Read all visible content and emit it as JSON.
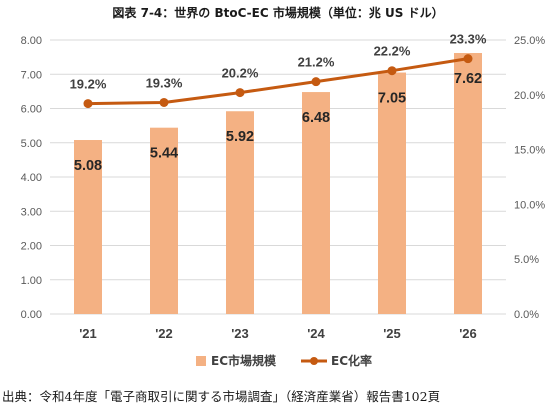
{
  "title": "図表 7-4：世界の BtoC-EC 市場規模（単位：兆 US ドル）",
  "source": "出典：令和4年度「電子商取引に関する市場調査」（経済産業省）報告書102頁",
  "colors": {
    "bar": "#F4B183",
    "line": "#C55A11",
    "grid": "#D9D9D9",
    "axis_text": "#595959"
  },
  "chart_data": {
    "type": "bar",
    "categories": [
      "'21",
      "'22",
      "'23",
      "'24",
      "'25",
      "'26"
    ],
    "series": [
      {
        "name": "EC市場規模",
        "type": "bar",
        "axis": "left",
        "values": [
          5.08,
          5.44,
          5.92,
          6.48,
          7.05,
          7.62
        ],
        "labels": [
          "5.08",
          "5.44",
          "5.92",
          "6.48",
          "7.05",
          "7.62"
        ]
      },
      {
        "name": "EC化率",
        "type": "line",
        "axis": "right",
        "values": [
          19.2,
          19.3,
          20.2,
          21.2,
          22.2,
          23.3
        ],
        "labels": [
          "19.2%",
          "19.3%",
          "20.2%",
          "21.2%",
          "22.2%",
          "23.3%"
        ]
      }
    ],
    "y_left": {
      "ylim": [
        0,
        8
      ],
      "ticks": [
        "0.00",
        "1.00",
        "2.00",
        "3.00",
        "4.00",
        "5.00",
        "6.00",
        "7.00",
        "8.00"
      ]
    },
    "y_right": {
      "ylim": [
        0,
        25
      ],
      "ticks": [
        "0.0%",
        "5.0%",
        "10.0%",
        "15.0%",
        "20.0%",
        "25.0%"
      ]
    },
    "grid": true,
    "legend": "bottom-center"
  }
}
